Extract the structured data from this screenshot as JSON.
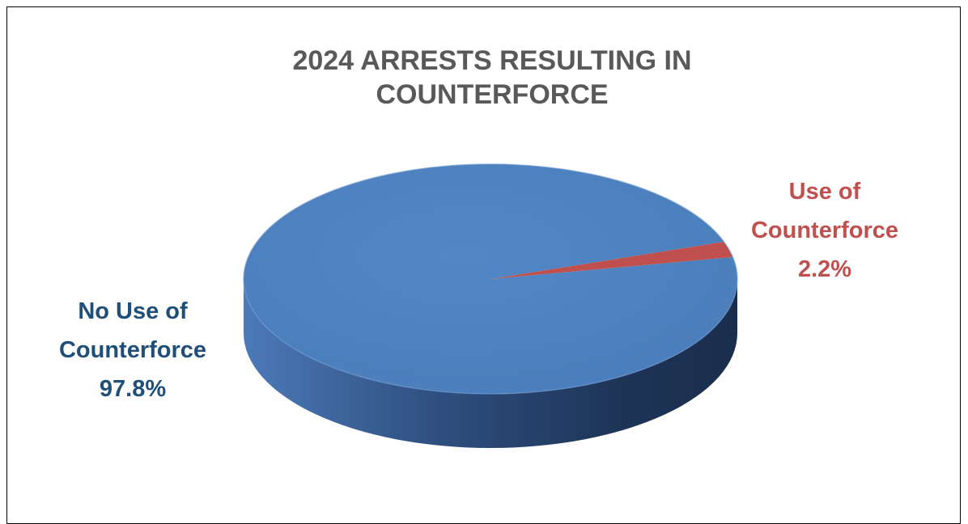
{
  "chart_data": {
    "type": "pie",
    "title_lines": [
      "2024 ARRESTS RESULTING IN",
      "COUNTERFORCE"
    ],
    "slices": [
      {
        "label_lines": [
          "No Use of",
          "Counterforce"
        ],
        "value": 97.8,
        "value_text": "97.8%",
        "color": "#4F81BD"
      },
      {
        "label_lines": [
          "Use of",
          "Counterforce"
        ],
        "value": 2.2,
        "value_text": "2.2%",
        "color": "#C0504D"
      }
    ]
  },
  "colors": {
    "title": "#595959",
    "no_use_label": "#1F4E79",
    "use_label": "#C0504D",
    "pie_side_dark": "#1B2F4F",
    "pie_side_light": "#4C7AB8"
  }
}
